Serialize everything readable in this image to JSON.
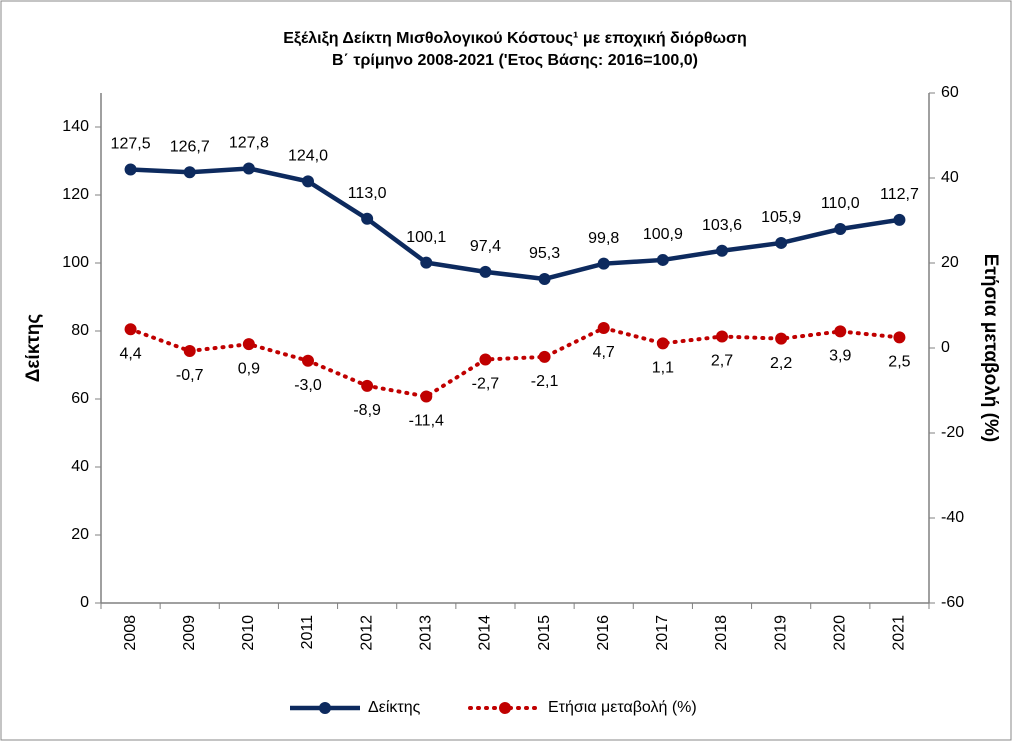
{
  "chart_data": {
    "type": "line",
    "title": "Εξέλιξη Δείκτη Μισθολογικού Κόστους¹ με εποχική διόρθωση",
    "subtitle": "Β΄ τρίμηνο 2008-2021 ('Ετος Βάσης: 2016=100,0)",
    "ylabel": "Δείκτης",
    "y2label": "Ετήσια μεταβολή (%)",
    "categories": [
      "2008",
      "2009",
      "2010",
      "2011",
      "2012",
      "2013",
      "2014",
      "2015",
      "2016",
      "2017",
      "2018",
      "2019",
      "2020",
      "2021"
    ],
    "series": [
      {
        "name": "Δείκτης",
        "color": "#0d2a5e",
        "style": "solid",
        "axis": "y",
        "values": [
          127.5,
          126.7,
          127.8,
          124.0,
          113.0,
          100.1,
          97.4,
          95.3,
          99.8,
          100.9,
          103.6,
          105.9,
          110.0,
          112.7
        ],
        "value_labels": [
          "127,5",
          "126,7",
          "127,8",
          "124,0",
          "113,0",
          "100,1",
          "97,4",
          "95,3",
          "99,8",
          "100,9",
          "103,6",
          "105,9",
          "110,0",
          "112,7"
        ]
      },
      {
        "name": "Ετήσια μεταβολή (%)",
        "color": "#c00000",
        "style": "dotted",
        "axis": "y2",
        "values": [
          4.4,
          -0.7,
          0.9,
          -3.0,
          -8.9,
          -11.4,
          -2.7,
          -2.1,
          4.7,
          1.1,
          2.7,
          2.2,
          3.9,
          2.5
        ],
        "value_labels": [
          "4,4",
          "-0,7",
          "0,9",
          "-3,0",
          "-8,9",
          "-11,4",
          "-2,7",
          "-2,1",
          "4,7",
          "1,1",
          "2,7",
          "2,2",
          "3,9",
          "2,5"
        ]
      }
    ],
    "ylim": [
      0,
      150
    ],
    "yticks": [
      0,
      20,
      40,
      60,
      80,
      100,
      120,
      140
    ],
    "y2lim": [
      -60,
      60
    ],
    "y2ticks": [
      -60,
      -40,
      -20,
      0,
      20,
      40,
      60
    ],
    "grid": false,
    "legend": "bottom"
  }
}
